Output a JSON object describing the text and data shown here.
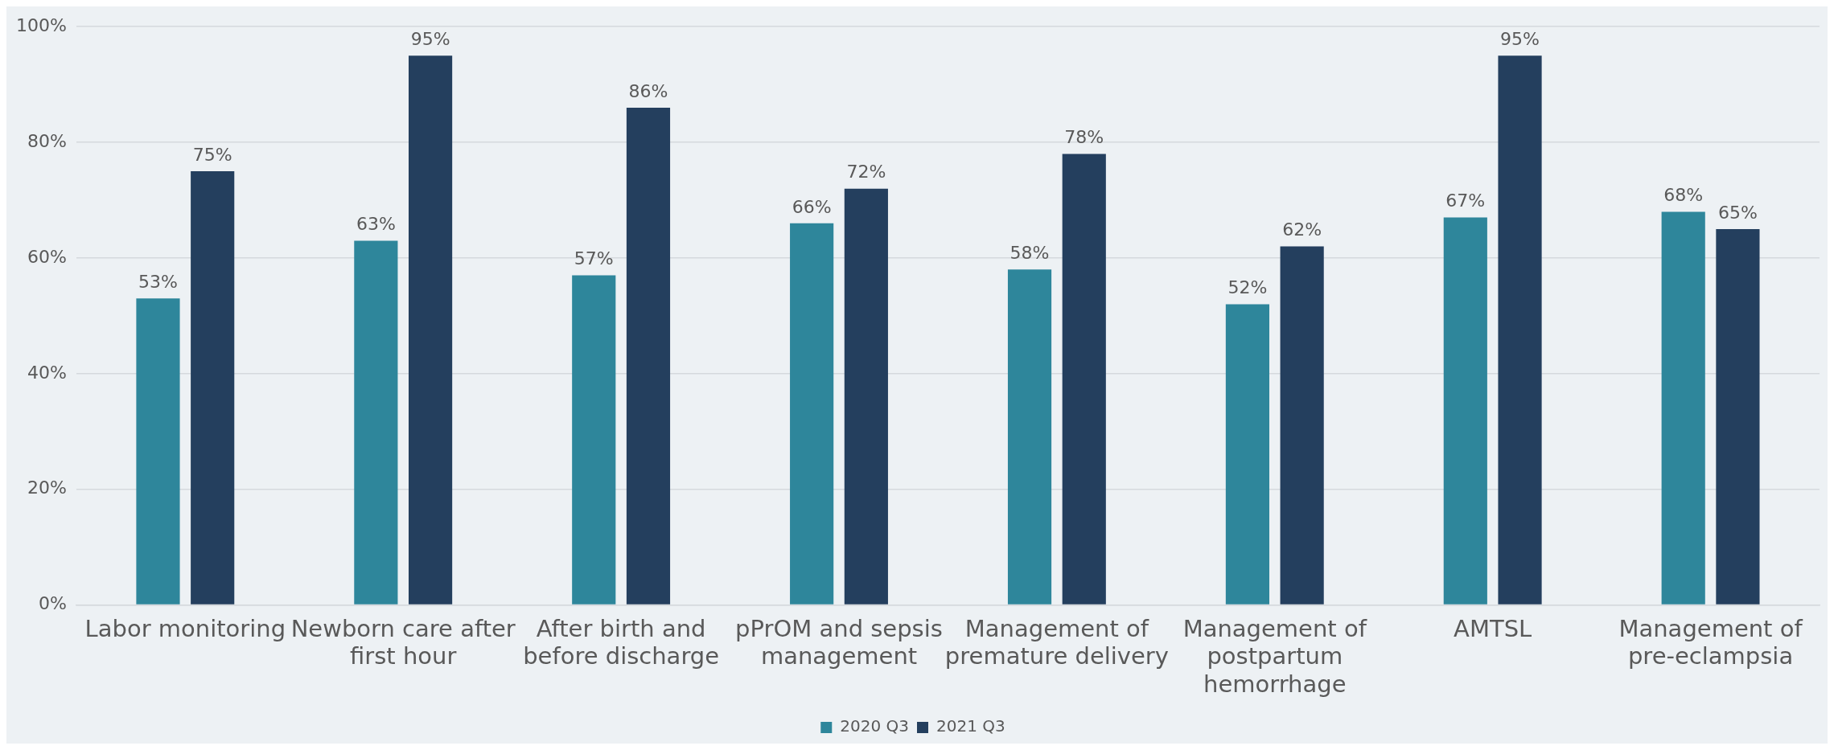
{
  "chart_data": {
    "type": "bar",
    "categories": [
      "Labor monitoring",
      "Newborn care after first hour",
      "After birth and before discharge",
      "pPrOM and sepsis management",
      "Management of premature delivery",
      "Management of postpartum hemorrhage",
      "AMTSL",
      "Management of pre-eclampsia"
    ],
    "series": [
      {
        "name": "2020 Q3",
        "color": "#2e869b",
        "values": [
          53,
          63,
          57,
          66,
          58,
          52,
          67,
          68
        ],
        "value_labels": [
          "53%",
          "63%",
          "57%",
          "66%",
          "58%",
          "52%",
          "67%",
          "68%"
        ]
      },
      {
        "name": "2021 Q3",
        "color": "#243f5e",
        "values": [
          75,
          95,
          86,
          72,
          78,
          62,
          95,
          65
        ],
        "value_labels": [
          "75%",
          "95%",
          "86%",
          "72%",
          "78%",
          "62%",
          "95%",
          "65%"
        ]
      }
    ],
    "ylim": [
      0,
      100
    ],
    "yticks": [
      {
        "value": 0,
        "label": "0%"
      },
      {
        "value": 20,
        "label": "20%"
      },
      {
        "value": 40,
        "label": "40%"
      },
      {
        "value": 60,
        "label": "60%"
      },
      {
        "value": 80,
        "label": "80%"
      },
      {
        "value": 100,
        "label": "100%"
      }
    ],
    "grid": "y",
    "legend": "bottom"
  }
}
